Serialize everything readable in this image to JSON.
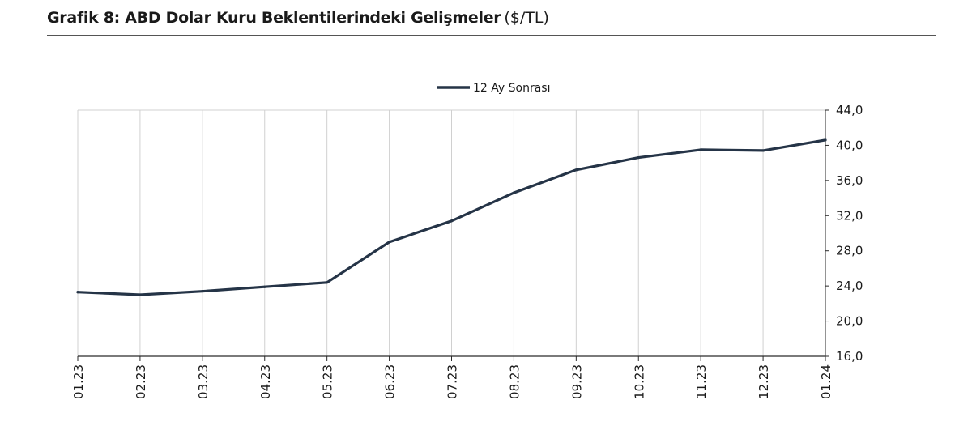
{
  "header": {
    "title": "Grafik 8: ABD Dolar Kuru Beklentilerindeki Gelişmeler",
    "unit": "($/TL)"
  },
  "chart_data": {
    "type": "line",
    "title": "Grafik 8: ABD Dolar Kuru Beklentilerindeki Gelişmeler ($/TL)",
    "xlabel": "",
    "ylabel": "",
    "categories": [
      "01.23",
      "02.23",
      "03.23",
      "04.23",
      "05.23",
      "06.23",
      "07.23",
      "08.23",
      "09.23",
      "10.23",
      "11.23",
      "12.23",
      "01.24"
    ],
    "series": [
      {
        "name": "12 Ay Sonrası",
        "color": "#253447",
        "values": [
          23.3,
          23.0,
          23.4,
          23.9,
          24.4,
          29.0,
          31.4,
          34.6,
          37.2,
          38.6,
          39.5,
          39.4,
          40.6
        ]
      }
    ],
    "ylim": [
      16,
      44
    ],
    "yticks": [
      "16,0",
      "20,0",
      "24,0",
      "28,0",
      "32,0",
      "36,0",
      "40,0",
      "44,0"
    ],
    "y_axis_side": "right",
    "grid": "vertical",
    "legend": "top-center"
  }
}
